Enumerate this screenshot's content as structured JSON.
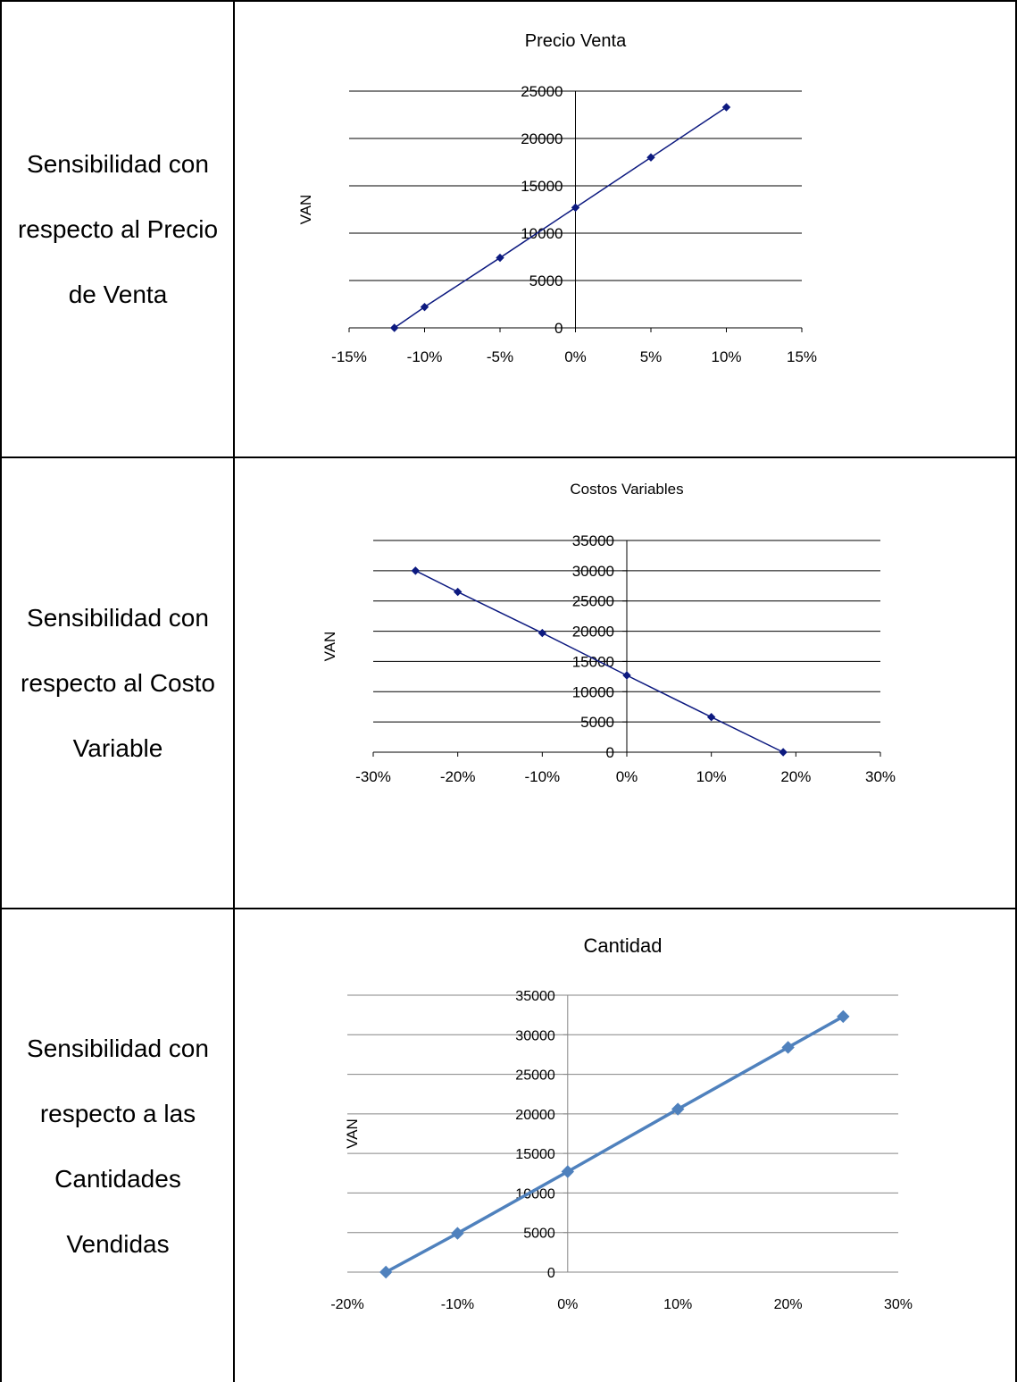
{
  "rows": [
    {
      "label": "Sensibilidad con respecto al Precio de Venta"
    },
    {
      "label": "Sensibilidad con respecto al Costo Variable"
    },
    {
      "label": "Sensibilidad con respecto a las Cantidades Vendidas"
    }
  ],
  "chart_data": [
    {
      "type": "line",
      "title": "Precio Venta",
      "xlabel": "",
      "ylabel": "VAN",
      "x": [
        -0.12,
        -0.1,
        -0.05,
        0.0,
        0.05,
        0.1
      ],
      "series": [
        {
          "values": [
            0,
            2200,
            7400,
            12700,
            18000,
            23300
          ]
        }
      ],
      "xlim": [
        -0.15,
        0.15
      ],
      "ylim": [
        0,
        25000
      ],
      "xticks": [
        -0.15,
        -0.1,
        -0.05,
        0.0,
        0.05,
        0.1,
        0.15
      ],
      "xtick_labels": [
        "-15%",
        "-10%",
        "-5%",
        "0%",
        "5%",
        "10%",
        "15%"
      ],
      "yticks": [
        0,
        5000,
        10000,
        15000,
        20000,
        25000
      ],
      "ytick_labels": [
        "0",
        "5000",
        "10000",
        "15000",
        "20000",
        "25000"
      ],
      "grid": true,
      "color": "#0d1a80"
    },
    {
      "type": "line",
      "title": "Costos Variables",
      "xlabel": "",
      "ylabel": "VAN",
      "x": [
        -0.25,
        -0.2,
        -0.1,
        0.0,
        0.1,
        0.185
      ],
      "series": [
        {
          "values": [
            30000,
            26500,
            19700,
            12700,
            5800,
            0
          ]
        }
      ],
      "xlim": [
        -0.3,
        0.3
      ],
      "ylim": [
        0,
        35000
      ],
      "xticks": [
        -0.3,
        -0.2,
        -0.1,
        0.0,
        0.1,
        0.2,
        0.3
      ],
      "xtick_labels": [
        "-30%",
        "-20%",
        "-10%",
        "0%",
        "10%",
        "20%",
        "30%"
      ],
      "yticks": [
        0,
        5000,
        10000,
        15000,
        20000,
        25000,
        30000,
        35000
      ],
      "ytick_labels": [
        "0",
        "5000",
        "10000",
        "15000",
        "20000",
        "25000",
        "30000",
        "35000"
      ],
      "grid": true,
      "color": "#0d1a80"
    },
    {
      "type": "line",
      "title": "Cantidad",
      "xlabel": "",
      "ylabel": "VAN",
      "x": [
        -0.165,
        -0.1,
        0.0,
        0.1,
        0.2,
        0.25
      ],
      "series": [
        {
          "values": [
            0,
            4900,
            12700,
            20600,
            28400,
            32300
          ]
        }
      ],
      "xlim": [
        -0.2,
        0.3
      ],
      "ylim": [
        0,
        35000
      ],
      "xticks": [
        -0.2,
        -0.1,
        0.0,
        0.1,
        0.2,
        0.3
      ],
      "xtick_labels": [
        "-20%",
        "-10%",
        "0%",
        "10%",
        "20%",
        "30%"
      ],
      "yticks": [
        0,
        5000,
        10000,
        15000,
        20000,
        25000,
        30000,
        35000
      ],
      "ytick_labels": [
        "0",
        "5000",
        "10000",
        "15000",
        "20000",
        "25000",
        "30000",
        "35000"
      ],
      "grid": true,
      "color": "#4f81bd"
    }
  ]
}
